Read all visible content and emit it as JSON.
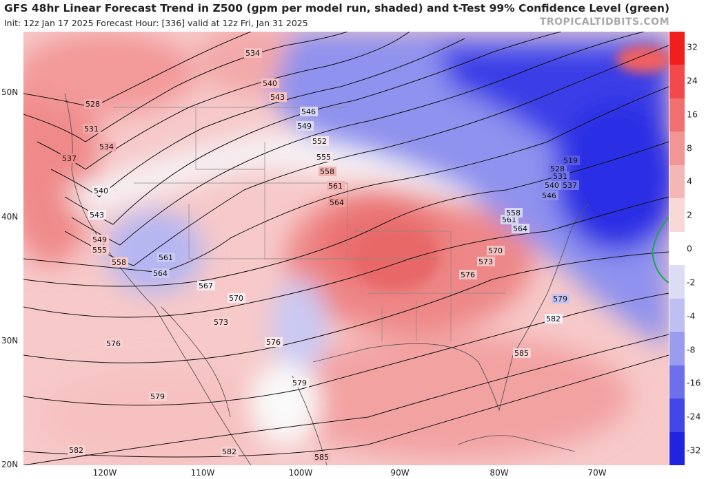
{
  "header": {
    "title": "GFS 48hr Linear Forecast Trend in Z500 (gpm per model run, shaded) and t-Test 99% Confidence Level (green)",
    "subtitle": "Init: 12z Jan 17 2025   Forecast Hour: [336]   valid at 12z Fri, Jan 31 2025",
    "credit": "TROPICALTIDBITS.COM"
  },
  "map": {
    "lat_labels": [
      "50N",
      "40N",
      "30N",
      "20N"
    ],
    "lon_labels": [
      "120W",
      "110W",
      "100W",
      "90W",
      "80W",
      "70W"
    ],
    "contour_labels": [
      "519",
      "528",
      "531",
      "534",
      "537",
      "540",
      "543",
      "546",
      "549",
      "552",
      "555",
      "558",
      "561",
      "564",
      "567",
      "570",
      "573",
      "576",
      "579",
      "582",
      "585"
    ]
  },
  "colorbar": {
    "ticks": [
      "32",
      "24",
      "16",
      "8",
      "4",
      "2",
      "0",
      "-2",
      "-4",
      "-8",
      "-16",
      "-24",
      "-32"
    ],
    "colors": [
      "#f21d1d",
      "#f24a4a",
      "#f06f6f",
      "#f29595",
      "#f5b6b6",
      "#f9d8d8",
      "#ffffff",
      "#dcdcf7",
      "#bfc0f2",
      "#9a9cee",
      "#6d70ea",
      "#4346e6",
      "#2023e0"
    ]
  },
  "chart_data": {
    "type": "heatmap",
    "title": "GFS 48hr Linear Forecast Trend in Z500 (gpm per model run, shaded) and t-Test 99% Confidence Level (green)",
    "region": {
      "lon": [
        -128,
        -62
      ],
      "lat": [
        20,
        55
      ]
    },
    "contours_gpm": [
      519,
      528,
      531,
      534,
      537,
      540,
      543,
      546,
      549,
      552,
      555,
      558,
      561,
      564,
      567,
      570,
      573,
      576,
      579,
      582,
      585
    ],
    "shading_scale": [
      -32,
      -24,
      -16,
      -8,
      -4,
      -2,
      0,
      2,
      4,
      8,
      16,
      24,
      32
    ]
  }
}
